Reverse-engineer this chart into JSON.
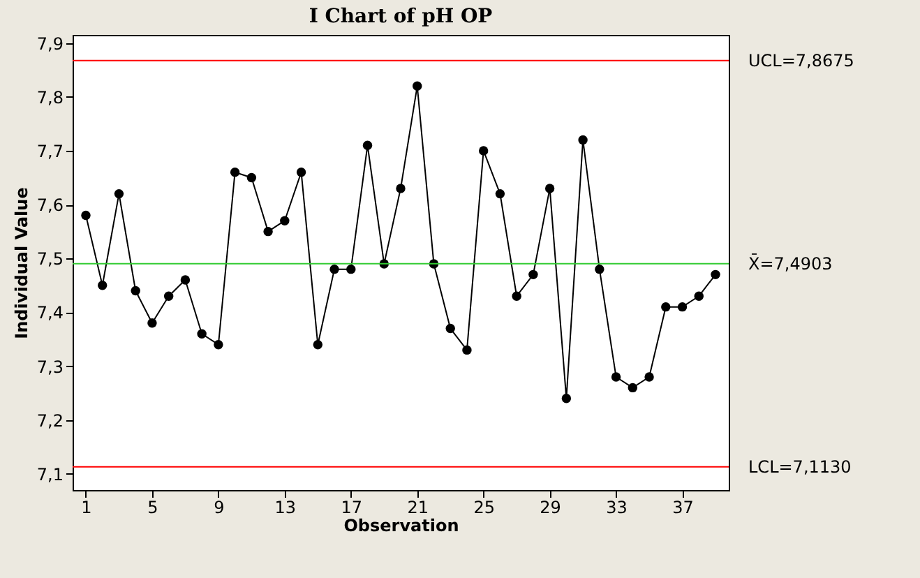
{
  "chart_data": {
    "type": "line",
    "title": "I Chart of pH OP",
    "xlabel": "Observation",
    "ylabel": "Individual Value",
    "x": [
      1,
      2,
      3,
      4,
      5,
      6,
      7,
      8,
      9,
      10,
      11,
      12,
      13,
      14,
      15,
      16,
      17,
      18,
      19,
      20,
      21,
      22,
      23,
      24,
      25,
      26,
      27,
      28,
      29,
      30,
      31,
      32,
      33,
      34,
      35,
      36,
      37,
      38,
      39
    ],
    "series": [
      {
        "color": "#000000",
        "values": [
          7.58,
          7.45,
          7.62,
          7.44,
          7.38,
          7.43,
          7.46,
          7.36,
          7.34,
          7.66,
          7.65,
          7.55,
          7.57,
          7.66,
          7.34,
          7.48,
          7.48,
          7.71,
          7.49,
          7.63,
          7.82,
          7.49,
          7.37,
          7.33,
          7.7,
          7.62,
          7.43,
          7.47,
          7.63,
          7.24,
          7.72,
          7.48,
          7.28,
          7.26,
          7.28,
          7.41,
          7.41,
          7.43,
          7.47
        ]
      }
    ],
    "xlim": [
      0.2,
      39.8
    ],
    "xticks": [
      1,
      5,
      9,
      13,
      17,
      21,
      25,
      29,
      33,
      37
    ],
    "ylim": [
      7.07,
      7.915
    ],
    "yticks": [
      {
        "value": 7.1,
        "label": "7,1"
      },
      {
        "value": 7.2,
        "label": "7,2"
      },
      {
        "value": 7.3,
        "label": "7,3"
      },
      {
        "value": 7.4,
        "label": "7,4"
      },
      {
        "value": 7.5,
        "label": "7,5"
      },
      {
        "value": 7.6,
        "label": "7,6"
      },
      {
        "value": 7.7,
        "label": "7,7"
      },
      {
        "value": 7.8,
        "label": "7,8"
      },
      {
        "value": 7.9,
        "label": "7,9"
      }
    ],
    "ref_lines": [
      {
        "axis": "y",
        "value": 7.8675,
        "label": "UCL=7,8675",
        "color": "#ff0000"
      },
      {
        "axis": "y",
        "value": 7.4903,
        "label": "X̄=7,4903",
        "color": "#33cc33"
      },
      {
        "axis": "y",
        "value": 7.113,
        "label": "LCL=7,1130",
        "color": "#ff0000"
      }
    ],
    "marker": "circle",
    "line_style": "solid",
    "grid": false
  }
}
